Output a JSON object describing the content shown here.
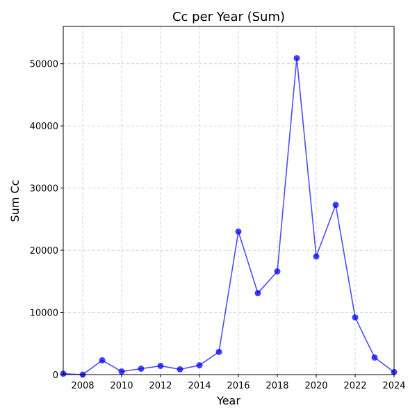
{
  "chart_data": {
    "type": "line",
    "title": "Cc per Year (Sum)",
    "xlabel": "Year",
    "ylabel": "Sum Cc",
    "xlim": [
      2007,
      2024
    ],
    "ylim": [
      0,
      56000
    ],
    "xticks": [
      2008,
      2010,
      2012,
      2014,
      2016,
      2018,
      2020,
      2022,
      2024
    ],
    "yticks": [
      0,
      10000,
      20000,
      30000,
      40000,
      50000
    ],
    "grid": true,
    "color": "#0000ff",
    "x": [
      2007,
      2008,
      2009,
      2010,
      2011,
      2012,
      2013,
      2014,
      2015,
      2016,
      2017,
      2018,
      2019,
      2020,
      2021,
      2022,
      2023,
      2024
    ],
    "y": [
      150,
      0,
      2300,
      500,
      950,
      1400,
      850,
      1500,
      3650,
      23000,
      13100,
      16600,
      50900,
      19000,
      27300,
      9200,
      2750,
      400
    ]
  }
}
